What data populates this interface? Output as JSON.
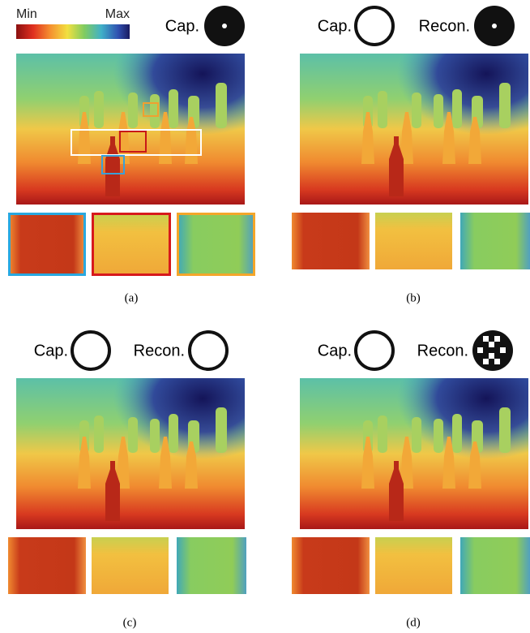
{
  "colorbar": {
    "min": "Min",
    "max": "Max"
  },
  "panels": [
    {
      "label": "(a)",
      "apertures": [
        "Cap."
      ]
    },
    {
      "label": "(b)",
      "apertures": [
        "Cap.",
        "Recon."
      ]
    },
    {
      "label": "(c)",
      "apertures": [
        "Cap.",
        "Recon."
      ]
    },
    {
      "label": "(d)",
      "apertures": [
        "Cap.",
        "Recon."
      ]
    }
  ]
}
